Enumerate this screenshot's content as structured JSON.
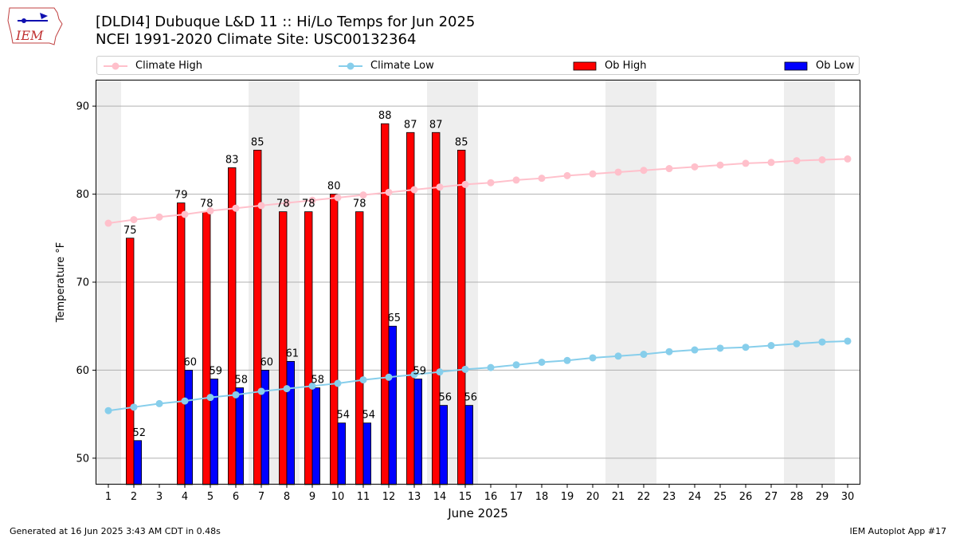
{
  "header": {
    "title_line1": "[DLDI4] Dubuque L&D 11 :: Hi/Lo Temps for Jun 2025",
    "title_line2": "NCEI 1991-2020 Climate Site: USC00132364",
    "logo_text": "IEM"
  },
  "footer": {
    "generated": "Generated at 16 Jun 2025 3:43 AM CDT in 0.48s",
    "app": "IEM Autoplot App #17"
  },
  "colors": {
    "climate_high": "#ffc0cb",
    "climate_low": "#87ceeb",
    "ob_high": "#ff0000",
    "ob_low": "#0000ff",
    "weekend_shade": "#eeeeee"
  },
  "chart_data": {
    "type": "bar",
    "xlabel": "June 2025",
    "ylabel": "Temperature °F",
    "x": [
      1,
      2,
      3,
      4,
      5,
      6,
      7,
      8,
      9,
      10,
      11,
      12,
      13,
      14,
      15,
      16,
      17,
      18,
      19,
      20,
      21,
      22,
      23,
      24,
      25,
      26,
      27,
      28,
      29,
      30
    ],
    "xlim": [
      0.5,
      30.5
    ],
    "ylim": [
      47,
      93
    ],
    "yticks": [
      50,
      60,
      70,
      80,
      90
    ],
    "grid": true,
    "legend_placement": "top",
    "shaded_days": [
      1,
      7,
      8,
      14,
      15,
      21,
      22,
      28,
      29
    ],
    "series": [
      {
        "name": "Climate High",
        "kind": "line",
        "values": [
          76.7,
          77.1,
          77.4,
          77.7,
          78.1,
          78.4,
          78.7,
          79.0,
          79.3,
          79.6,
          79.9,
          80.2,
          80.5,
          80.8,
          81.1,
          81.3,
          81.6,
          81.8,
          82.1,
          82.3,
          82.5,
          82.7,
          82.9,
          83.1,
          83.3,
          83.5,
          83.6,
          83.8,
          83.9,
          84.0
        ]
      },
      {
        "name": "Climate Low",
        "kind": "line",
        "values": [
          55.4,
          55.8,
          56.2,
          56.5,
          56.9,
          57.2,
          57.6,
          57.9,
          58.2,
          58.5,
          58.9,
          59.2,
          59.5,
          59.8,
          60.1,
          60.3,
          60.6,
          60.9,
          61.1,
          61.4,
          61.6,
          61.8,
          62.1,
          62.3,
          62.5,
          62.6,
          62.8,
          63.0,
          63.2,
          63.3
        ]
      },
      {
        "name": "Ob High",
        "kind": "bar",
        "values": [
          null,
          75,
          null,
          79,
          78,
          83,
          85,
          78,
          78,
          80,
          78,
          88,
          87,
          87,
          85,
          null,
          null,
          null,
          null,
          null,
          null,
          null,
          null,
          null,
          null,
          null,
          null,
          null,
          null,
          null
        ]
      },
      {
        "name": "Ob Low",
        "kind": "bar",
        "values": [
          null,
          52,
          null,
          60,
          59,
          58,
          60,
          61,
          58,
          54,
          54,
          65,
          59,
          56,
          56,
          null,
          null,
          null,
          null,
          null,
          null,
          null,
          null,
          null,
          null,
          null,
          null,
          null,
          null,
          null
        ]
      }
    ]
  }
}
